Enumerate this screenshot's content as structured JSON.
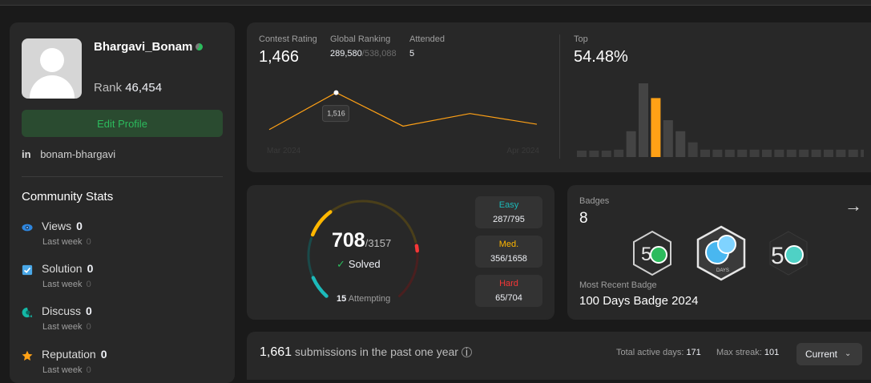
{
  "profile": {
    "username": "Bhargavi_Bonam",
    "rank_label": "Rank",
    "rank_value": "46,454",
    "edit_label": "Edit Profile",
    "linkedin_icon": "in",
    "linkedin": "bonam-bhargavi"
  },
  "community": {
    "title": "Community Stats",
    "items": [
      {
        "label": "Views",
        "value": "0",
        "sub": "Last week",
        "sub_value": "0",
        "icon": "eye-icon"
      },
      {
        "label": "Solution",
        "value": "0",
        "sub": "Last week",
        "sub_value": "0",
        "icon": "solution-check-icon"
      },
      {
        "label": "Discuss",
        "value": "0",
        "sub": "Last week",
        "sub_value": "0",
        "icon": "discuss-bubble-icon"
      },
      {
        "label": "Reputation",
        "value": "0",
        "sub": "Last week",
        "sub_value": "0",
        "icon": "star-icon"
      }
    ]
  },
  "contest": {
    "rating_label": "Contest Rating",
    "rating_value": "1,466",
    "ranking_label": "Global Ranking",
    "ranking_value": "289,580",
    "ranking_total": "/538,088",
    "attended_label": "Attended",
    "attended_value": "5",
    "tooltip": "1,516",
    "axis_start": "Mar 2024",
    "axis_end": "Apr 2024",
    "top_label": "Top",
    "top_value": "54.48%"
  },
  "chart_data": [
    {
      "type": "line",
      "title": "Contest Rating",
      "x": [
        "Mar 2024",
        "",
        "",
        "",
        "Apr 2024"
      ],
      "values": [
        1440,
        1516,
        1447,
        1473,
        1451
      ],
      "highlight_index": 1,
      "highlight_label": "1,516",
      "ylim": [
        1400,
        1540
      ],
      "color": "#ffa116"
    },
    {
      "type": "bar",
      "title": "Top",
      "values": [
        1,
        1,
        1,
        2,
        7,
        20,
        16,
        10,
        7,
        4,
        2,
        2,
        2,
        2,
        2,
        2,
        2,
        2,
        2,
        2,
        2,
        2,
        2,
        2
      ],
      "highlight_index": 6,
      "highlight_color": "#ffa116",
      "color": "#3e3e3e"
    },
    {
      "type": "pie",
      "title": "Solved",
      "categories": [
        "Easy",
        "Medium",
        "Hard"
      ],
      "values": [
        287,
        356,
        65
      ],
      "totals": [
        795,
        1658,
        704
      ]
    }
  ],
  "solved": {
    "count": "708",
    "total": "/3157",
    "label": "Solved",
    "attempting_count": "15",
    "attempting_label": "Attempting",
    "easy_label": "Easy",
    "easy_value": "287/795",
    "medium_label": "Med.",
    "medium_value": "356/1658",
    "hard_label": "Hard",
    "hard_value": "65/704"
  },
  "badges": {
    "title": "Badges",
    "count": "8",
    "recent_label": "Most Recent Badge",
    "recent_value": "100 Days Badge 2024",
    "arrow": "→"
  },
  "submissions": {
    "count": "1,661",
    "label": "submissions in the past one year",
    "active_label": "Total active days:",
    "active_value": "171",
    "streak_label": "Max streak:",
    "streak_value": "101",
    "dropdown": "Current"
  },
  "colors": {
    "easy": "#1cbaba",
    "medium": "#ffb700",
    "hard": "#f63737",
    "accent": "#ffa116",
    "green": "#2cbb5d"
  }
}
